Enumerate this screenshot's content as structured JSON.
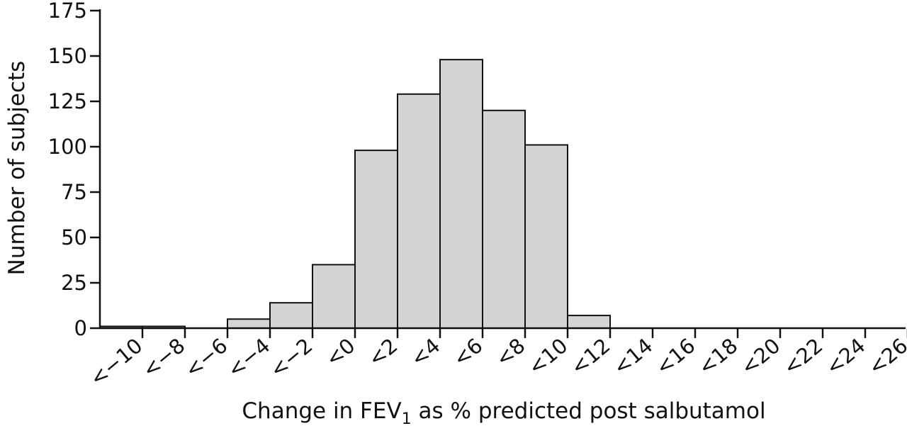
{
  "chart_data": {
    "type": "bar",
    "xlabel": {
      "prefix": "Change in FEV",
      "subscript": "1",
      "suffix": " as % predicted post salbutamol"
    },
    "ylabel": "Number of subjects",
    "categories": [
      "<−10",
      "<−8",
      "<−6",
      "<−4",
      "<−2",
      "<0",
      "<2",
      "<4",
      "<6",
      "<8",
      "<10",
      "<12",
      "<14",
      "<16",
      "<18",
      "<20",
      "<22",
      "<24",
      "<26"
    ],
    "values": [
      1,
      1,
      0,
      5,
      14,
      35,
      98,
      129,
      148,
      120,
      101,
      7,
      0,
      0,
      0,
      0,
      0,
      0,
      0
    ],
    "ylim": [
      0,
      175
    ],
    "yticks": [
      0,
      25,
      50,
      75,
      100,
      125,
      150,
      175
    ],
    "grid": false
  }
}
